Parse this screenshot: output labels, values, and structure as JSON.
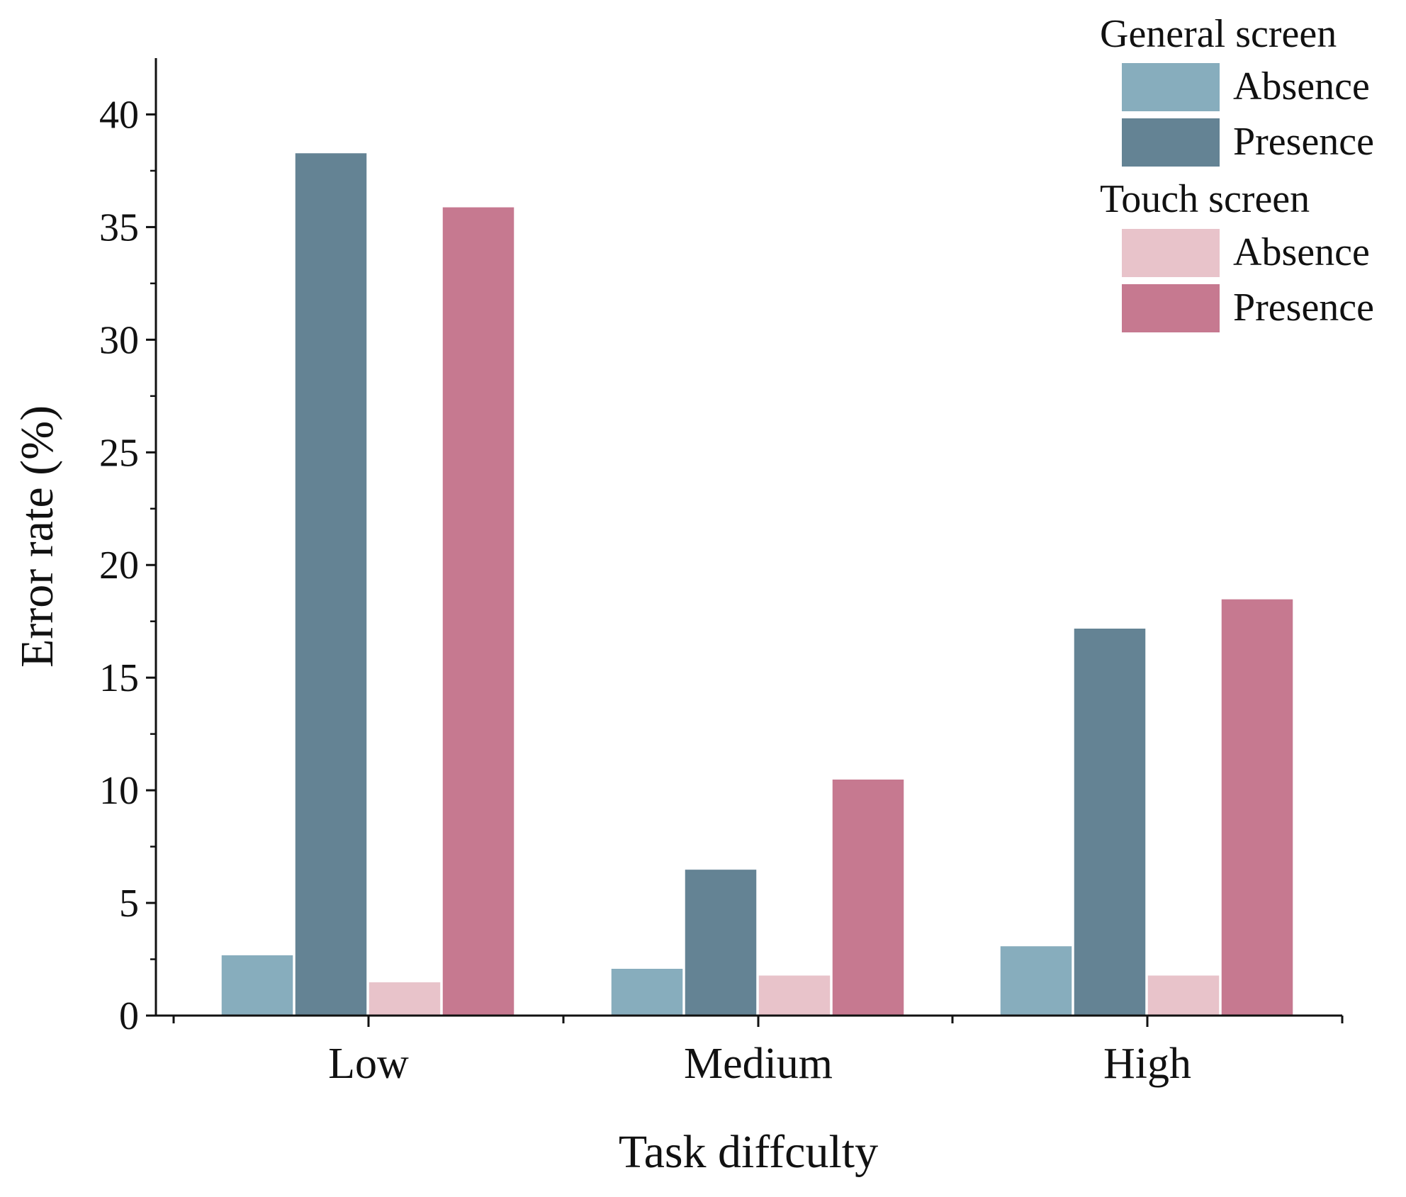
{
  "chart_data": {
    "type": "bar",
    "title": "",
    "xlabel": "Task diffculty",
    "ylabel": "Error rate (%)",
    "categories": [
      "Low",
      "Medium",
      "High"
    ],
    "ylim": [
      0,
      42.5
    ],
    "yticks": [
      0,
      5,
      10,
      15,
      20,
      25,
      30,
      35,
      40
    ],
    "ytick_labels": [
      "0",
      "5",
      "10",
      "15",
      "20",
      "25",
      "30",
      "35",
      "40"
    ],
    "grid": false,
    "legend_position": "top-right",
    "legend_groups": [
      {
        "title": "General screen",
        "entries": [
          0,
          1
        ]
      },
      {
        "title": "Touch screen",
        "entries": [
          2,
          3
        ]
      }
    ],
    "series": [
      {
        "name": "Absence",
        "group": "General screen",
        "color": "#87adbd",
        "values": [
          2.7,
          2.1,
          3.1
        ]
      },
      {
        "name": "Presence",
        "group": "General screen",
        "color": "#648394",
        "values": [
          38.3,
          6.5,
          17.2
        ]
      },
      {
        "name": "Absence",
        "group": "Touch screen",
        "color": "#e8c3ca",
        "values": [
          1.5,
          1.8,
          1.8
        ]
      },
      {
        "name": "Presence",
        "group": "Touch screen",
        "color": "#c67990",
        "values": [
          35.9,
          10.5,
          18.5
        ]
      }
    ]
  }
}
